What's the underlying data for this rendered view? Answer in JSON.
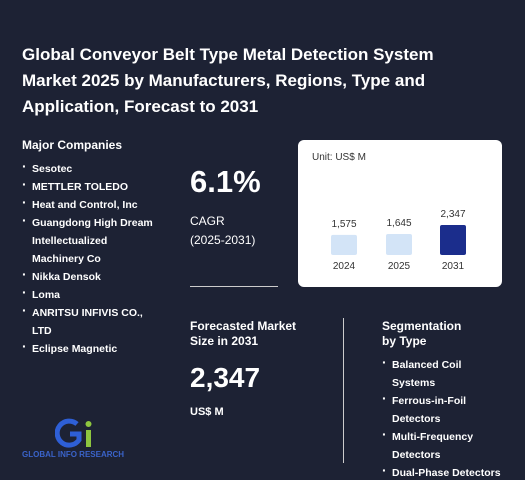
{
  "title": "Global Conveyor Belt Type Metal Detection System Market 2025 by Manufacturers, Regions, Type and Application, Forecast to 2031",
  "companies": {
    "heading": "Major Companies",
    "items": [
      "Sesotec",
      "METTLER TOLEDO",
      "Heat and Control, Inc",
      "Guangdong High Dream Intellectualized Machinery Co",
      "Nikka Densok",
      "Loma",
      "ANRITSU INFIVIS CO., LTD",
      "Eclipse Magnetic"
    ]
  },
  "cagr": {
    "value": "6.1%",
    "label": "CAGR",
    "period": "(2025-2031)"
  },
  "forecast": {
    "heading": "Forecasted Market Size in 2031",
    "value": "2,347",
    "unit": "US$ M"
  },
  "segmentation": {
    "heading": "Segmentation by Type",
    "items": [
      "Balanced Coil Systems",
      "Ferrous-in-Foil Detectors",
      "Multi-Frequency Detectors",
      "Dual-Phase Detectors"
    ]
  },
  "logo": {
    "text": "GLOBAL INFO RESEARCH"
  },
  "chart_data": {
    "type": "bar",
    "subtitle": "Unit: US$ M",
    "categories": [
      "2024",
      "2025",
      "2031"
    ],
    "values": [
      1575,
      1645,
      2347
    ],
    "value_labels": [
      "1,575",
      "1,645",
      "2,347"
    ],
    "colors": [
      "#d3e4f7",
      "#d3e4f7",
      "#1b2d8c"
    ]
  }
}
